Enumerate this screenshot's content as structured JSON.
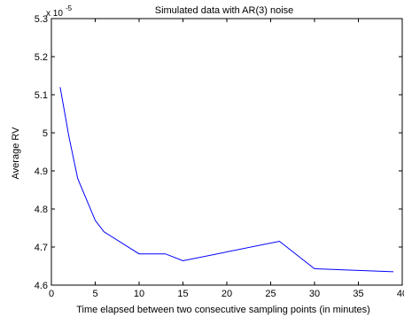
{
  "chart_data": {
    "type": "line",
    "title": "Simulated data with AR(3) noise",
    "xlabel": "Time elapsed between two consecutive sampling points (in minutes)",
    "ylabel": "Average RV",
    "y_multiplier_base": "x 10",
    "y_multiplier_exponent": "-5",
    "xlim": [
      0,
      40
    ],
    "ylim": [
      4.6,
      5.3
    ],
    "x_ticks": [
      0,
      5,
      10,
      15,
      20,
      25,
      30,
      35,
      40
    ],
    "x_tick_labels": [
      "0",
      "5",
      "10",
      "15",
      "20",
      "25",
      "30",
      "35",
      "40"
    ],
    "y_ticks": [
      4.6,
      4.7,
      4.8,
      4.9,
      5.0,
      5.1,
      5.2,
      5.3
    ],
    "y_tick_labels": [
      "4.6",
      "4.7",
      "4.8",
      "4.9",
      "5",
      "5.1",
      "5.2",
      "5.3"
    ],
    "grid": false,
    "series": [
      {
        "color": "#0000ff",
        "x": [
          1,
          2,
          3,
          5,
          6,
          10,
          13,
          15,
          26,
          30,
          39
        ],
        "y": [
          5.12,
          4.99,
          4.88,
          4.77,
          4.74,
          4.682,
          4.682,
          4.664,
          4.715,
          4.643,
          4.635
        ]
      }
    ]
  }
}
